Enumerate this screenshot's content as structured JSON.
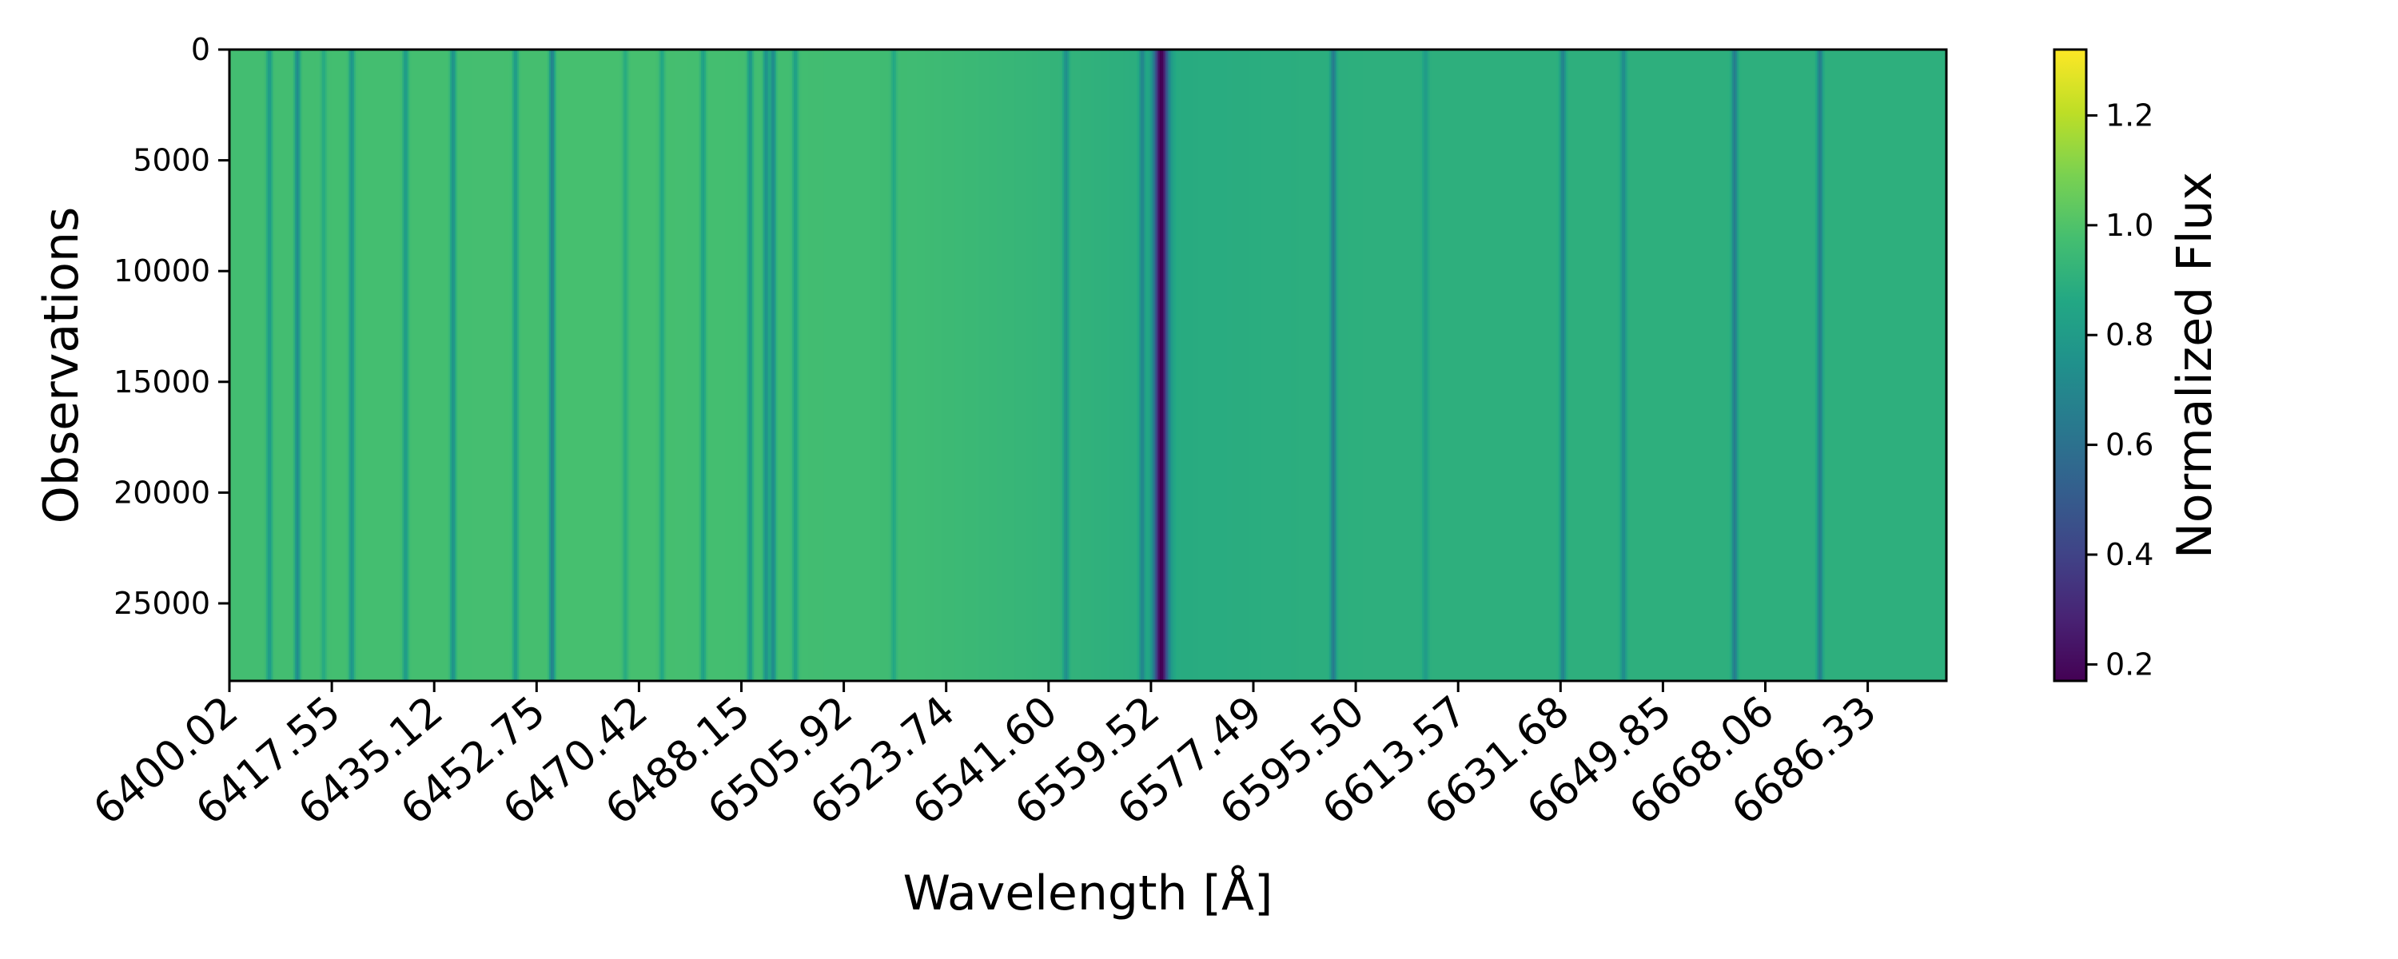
{
  "chart_data": {
    "type": "heatmap",
    "title": "",
    "xlabel": "Wavelength [Å]",
    "ylabel": "Observations",
    "x_tick_labels": [
      "6400.02",
      "6417.55",
      "6435.12",
      "6452.75",
      "6470.42",
      "6488.15",
      "6505.92",
      "6523.74",
      "6541.60",
      "6559.52",
      "6577.49",
      "6595.50",
      "6613.57",
      "6631.68",
      "6649.85",
      "6668.06",
      "6686.33"
    ],
    "y_tick_labels": [
      "0",
      "5000",
      "10000",
      "15000",
      "20000",
      "25000"
    ],
    "y_ticks": [
      0,
      5000,
      10000,
      15000,
      20000,
      25000
    ],
    "ylim": [
      28500,
      0
    ],
    "xlim": [
      6400.02,
      6700.0
    ],
    "colorbar": {
      "label": "Normalized Flux",
      "range": [
        0.17,
        1.32
      ],
      "ticks": [
        0.2,
        0.4,
        0.6,
        0.8,
        1.0,
        1.2
      ],
      "tick_labels": [
        "0.2",
        "0.4",
        "0.6",
        "0.8",
        "1.0",
        "1.2"
      ],
      "colormap": "viridis"
    },
    "continuum_profile": [
      {
        "wavelength": 6400.0,
        "flux": 0.97
      },
      {
        "wavelength": 6470.0,
        "flux": 0.98
      },
      {
        "wavelength": 6520.0,
        "flux": 0.96
      },
      {
        "wavelength": 6545.0,
        "flux": 0.92
      },
      {
        "wavelength": 6565.0,
        "flux": 0.88
      },
      {
        "wavelength": 6600.0,
        "flux": 0.9
      },
      {
        "wavelength": 6700.0,
        "flux": 0.9
      }
    ],
    "absorption_lines": [
      {
        "wavelength": 6407.0,
        "depth": 0.18
      },
      {
        "wavelength": 6411.9,
        "depth": 0.25
      },
      {
        "wavelength": 6416.5,
        "depth": 0.1
      },
      {
        "wavelength": 6421.4,
        "depth": 0.2
      },
      {
        "wavelength": 6430.8,
        "depth": 0.18
      },
      {
        "wavelength": 6439.1,
        "depth": 0.22
      },
      {
        "wavelength": 6450.0,
        "depth": 0.18
      },
      {
        "wavelength": 6456.4,
        "depth": 0.3
      },
      {
        "wavelength": 6469.2,
        "depth": 0.1
      },
      {
        "wavelength": 6475.6,
        "depth": 0.12
      },
      {
        "wavelength": 6482.8,
        "depth": 0.15
      },
      {
        "wavelength": 6491.0,
        "depth": 0.2
      },
      {
        "wavelength": 6493.8,
        "depth": 0.22
      },
      {
        "wavelength": 6495.0,
        "depth": 0.25
      },
      {
        "wavelength": 6498.9,
        "depth": 0.15
      },
      {
        "wavelength": 6516.1,
        "depth": 0.1
      },
      {
        "wavelength": 6546.2,
        "depth": 0.18
      },
      {
        "wavelength": 6559.5,
        "depth": 0.2
      },
      {
        "wavelength": 6562.8,
        "depth": 0.72
      },
      {
        "wavelength": 6592.9,
        "depth": 0.25
      },
      {
        "wavelength": 6609.0,
        "depth": 0.1
      },
      {
        "wavelength": 6633.0,
        "depth": 0.22
      },
      {
        "wavelength": 6643.6,
        "depth": 0.18
      },
      {
        "wavelength": 6663.0,
        "depth": 0.25
      },
      {
        "wavelength": 6677.9,
        "depth": 0.25
      }
    ]
  }
}
